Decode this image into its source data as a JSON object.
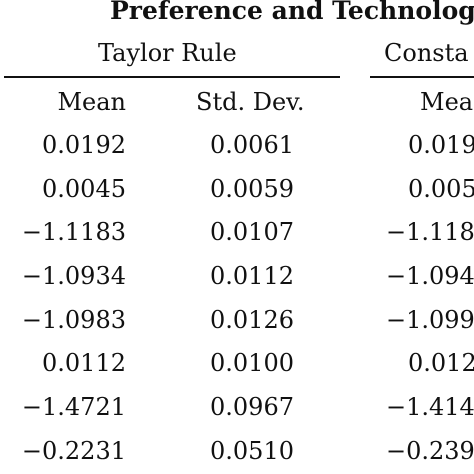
{
  "table": {
    "title": "Preference and Technology",
    "groups": {
      "taylor": "Taylor Rule",
      "constant": "Consta"
    },
    "headers": {
      "mean": "Mean",
      "std_dev": "Std. Dev.",
      "constant_mean": "Mea"
    },
    "rows": [
      {
        "mean": "0.0192",
        "std_dev": "0.0061",
        "constant_mean": "0.019"
      },
      {
        "mean": "0.0045",
        "std_dev": "0.0059",
        "constant_mean": "0.005"
      },
      {
        "mean": "−1.1183",
        "std_dev": "0.0107",
        "constant_mean": "−1.118"
      },
      {
        "mean": "−1.0934",
        "std_dev": "0.0112",
        "constant_mean": "−1.094"
      },
      {
        "mean": "−1.0983",
        "std_dev": "0.0126",
        "constant_mean": "−1.099"
      },
      {
        "mean": "0.0112",
        "std_dev": "0.0100",
        "constant_mean": "0.012"
      },
      {
        "mean": "−1.4721",
        "std_dev": "0.0967",
        "constant_mean": "−1.414"
      },
      {
        "mean": "−0.2231",
        "std_dev": "0.0510",
        "constant_mean": "−0.239"
      }
    ]
  }
}
